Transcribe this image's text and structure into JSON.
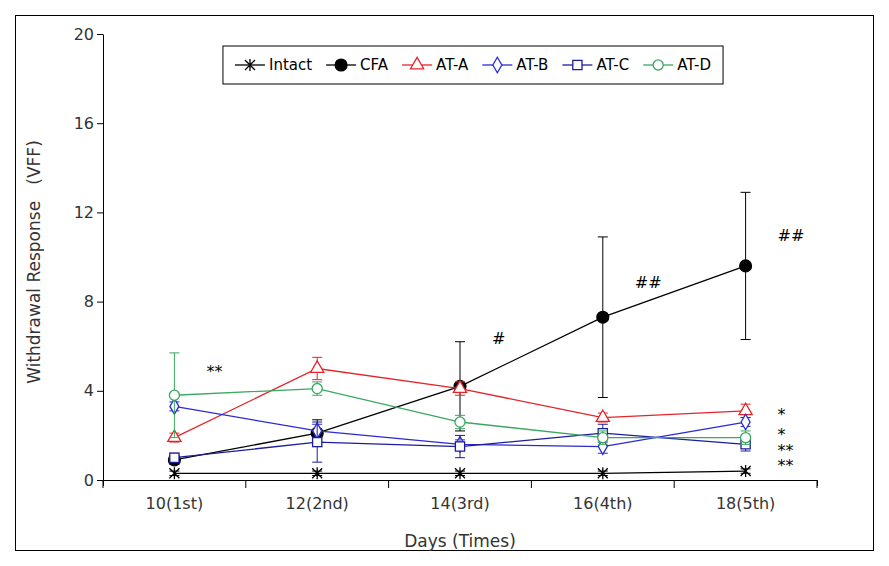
{
  "chart_data": {
    "type": "line",
    "x_label": "Days (Times)",
    "y_label": "Withdrawal Response   (VFF)",
    "categories": [
      "10(1st)",
      "12(2nd)",
      "14(3rd)",
      "16(4th)",
      "18(5th)"
    ],
    "ylim": [
      0,
      20
    ],
    "yticks": [
      0,
      4,
      8,
      12,
      16,
      20
    ],
    "grid": false,
    "legend": "top",
    "series": [
      {
        "name": "Intact",
        "color": "#000000",
        "marker": "asterisk",
        "values": [
          0.3,
          0.3,
          0.3,
          0.3,
          0.4
        ],
        "errors": [
          0.1,
          0.1,
          0.1,
          0.1,
          0.1
        ]
      },
      {
        "name": "CFA",
        "color": "#000000",
        "marker": "circle-filled",
        "values": [
          0.9,
          2.1,
          4.2,
          7.3,
          9.6
        ],
        "errors": [
          0.2,
          0.6,
          2.0,
          3.6,
          3.3
        ]
      },
      {
        "name": "AT-A",
        "color": "#e3242b",
        "marker": "triangle-open",
        "values": [
          1.9,
          5.0,
          4.1,
          2.8,
          3.1
        ],
        "errors": [
          0.2,
          0.5,
          0.3,
          0.2,
          0.3
        ]
      },
      {
        "name": "AT-B",
        "color": "#2a2ad4",
        "marker": "diamond-open",
        "values": [
          3.3,
          2.2,
          1.6,
          1.5,
          2.6
        ],
        "errors": [
          0.2,
          0.3,
          0.2,
          0.3,
          0.2
        ]
      },
      {
        "name": "AT-C",
        "color": "#1c1c9c",
        "marker": "square-open",
        "values": [
          1.0,
          1.7,
          1.5,
          2.1,
          1.6
        ],
        "errors": [
          0.2,
          0.9,
          0.5,
          0.4,
          0.3
        ]
      },
      {
        "name": "AT-D",
        "color": "#3aa860",
        "marker": "circle-open",
        "values": [
          3.8,
          4.1,
          2.6,
          1.9,
          1.9
        ],
        "errors": [
          1.9,
          0.3,
          0.3,
          0.3,
          0.3
        ]
      }
    ],
    "annotations": [
      {
        "text": "**",
        "x": "10(1st)",
        "y": 4.8
      },
      {
        "text": "#",
        "x": "14(3rd)",
        "y": 6.3
      },
      {
        "text": "##",
        "x": "16(4th)",
        "y": 8.8
      },
      {
        "text": "##",
        "x": "18(5th)",
        "y": 10.9
      },
      {
        "text": "*",
        "x": "18(5th)",
        "y": 2.9
      },
      {
        "text": "*",
        "x": "18(5th)",
        "y": 2.0
      },
      {
        "text": "**",
        "x": "18(5th)",
        "y": 1.3
      },
      {
        "text": "**",
        "x": "18(5th)",
        "y": 0.6
      }
    ]
  }
}
